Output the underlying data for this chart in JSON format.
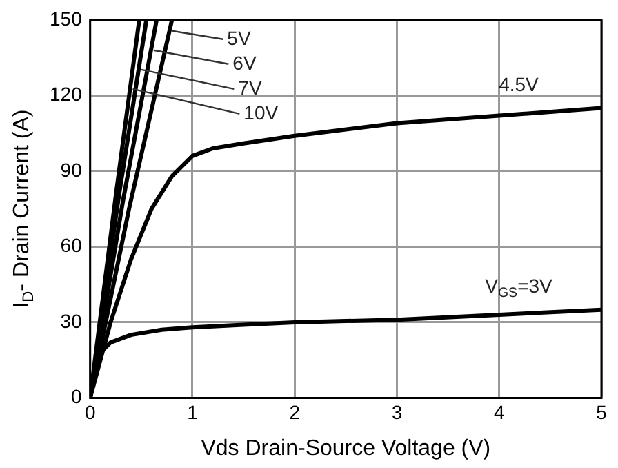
{
  "chart_data": {
    "type": "line",
    "xlabel": "Vds Drain-Source Voltage (V)",
    "ylabel": "I$_{D}$- Drain Current (A)",
    "xlim": [
      0,
      5
    ],
    "xticks": [
      0,
      1,
      2,
      3,
      4,
      5
    ],
    "ylim": [
      0,
      150
    ],
    "yticks": [
      0,
      30,
      60,
      90,
      120,
      150
    ],
    "grid": true,
    "legend": false,
    "marker": "none",
    "line_style": "solid",
    "series": [
      {
        "name": "10V",
        "color": "#000000",
        "x": [
          0,
          0.25,
          0.48
        ],
        "values": [
          0,
          80,
          150
        ]
      },
      {
        "name": "7V",
        "color": "#000000",
        "x": [
          0,
          0.28,
          0.55
        ],
        "values": [
          0,
          80,
          150
        ]
      },
      {
        "name": "6V",
        "color": "#000000",
        "x": [
          0,
          0.32,
          0.65
        ],
        "values": [
          0,
          78,
          150
        ]
      },
      {
        "name": "5V",
        "color": "#000000",
        "x": [
          0,
          0.38,
          0.8
        ],
        "values": [
          0,
          75,
          150
        ]
      },
      {
        "name": "4.5V",
        "color": "#000000",
        "x": [
          0,
          0.2,
          0.4,
          0.6,
          0.8,
          1,
          1.2,
          1.5,
          2,
          3,
          4,
          5
        ],
        "values": [
          0,
          30,
          55,
          75,
          88,
          96,
          99,
          101,
          104,
          109,
          112,
          115
        ]
      },
      {
        "name": "V$_{GS}$=3V",
        "color": "#000000",
        "x": [
          0,
          0.05,
          0.1,
          0.2,
          0.4,
          0.7,
          1,
          1.5,
          2,
          3,
          4,
          5
        ],
        "values": [
          0,
          12,
          18,
          22,
          25,
          27,
          28,
          29,
          30,
          31,
          33,
          35
        ]
      }
    ]
  }
}
